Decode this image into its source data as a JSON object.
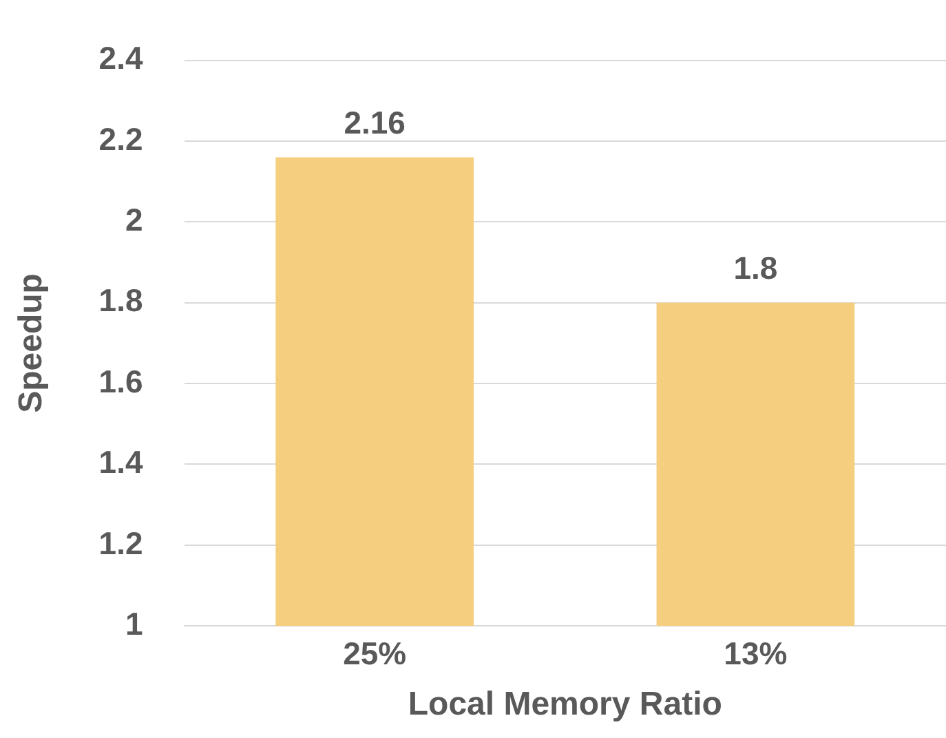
{
  "chart_data": {
    "type": "bar",
    "xlabel": "Local Memory Ratio",
    "ylabel": "Speedup",
    "categories": [
      "25%",
      "13%"
    ],
    "values": [
      2.16,
      1.8
    ],
    "color": "#f5cf7f",
    "ylim": [
      1,
      2.4
    ],
    "yticks": [
      1,
      1.2,
      1.4,
      1.6,
      1.8,
      2,
      2.2,
      2.4
    ],
    "grid": "y",
    "data_labels": true,
    "legend": false
  }
}
